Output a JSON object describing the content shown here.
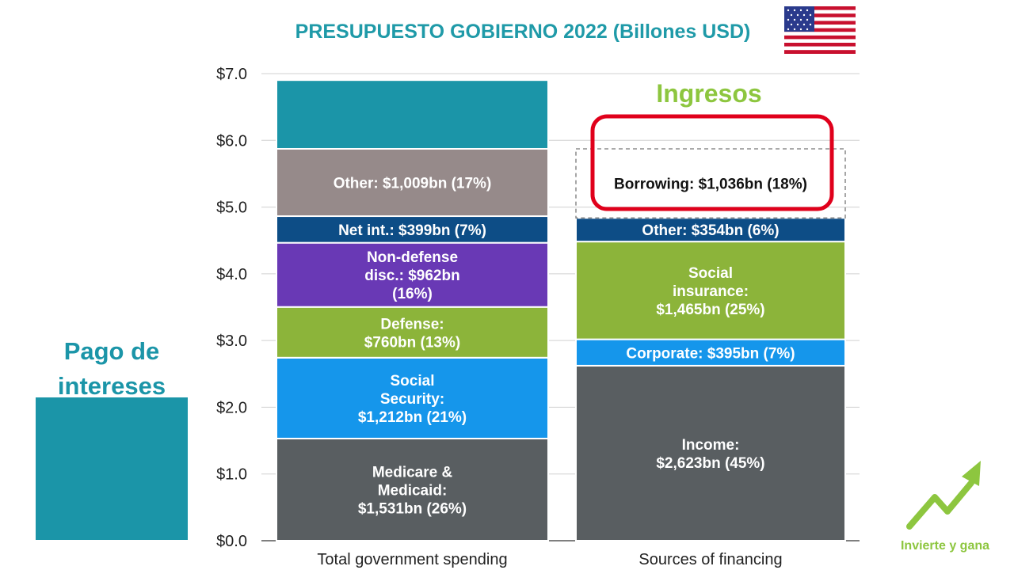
{
  "header": {
    "title": "PRESUPUESTO GOBIERNO 2022 (Billones USD)"
  },
  "annotations": {
    "ingresos": "Ingresos",
    "pago_line1": "Pago de",
    "pago_line2": "intereses",
    "brand": "Invierte y gana"
  },
  "colors": {
    "title": "#1f9aa8",
    "teal": "#1b95a8",
    "green_label": "#8dc63f",
    "highlight_box": "#e0001b"
  },
  "icons": {
    "flag": "us-flag-icon",
    "brand": "rising-arrow-icon"
  },
  "chart_data": {
    "type": "bar",
    "stacked": true,
    "categories": [
      "Total government spending",
      "Sources of financing"
    ],
    "ylim": [
      0,
      7
    ],
    "yticks": [
      "$0.0",
      "$1.0",
      "$2.0",
      "$3.0",
      "$4.0",
      "$5.0",
      "$6.0",
      "$7.0"
    ],
    "grid": true,
    "series": [
      {
        "category": "Total government spending",
        "segments": [
          {
            "value": 1.531,
            "color": "#595e61",
            "label": [
              "Medicare &",
              "Medicaid:",
              "$1,531bn (26%)"
            ]
          },
          {
            "value": 1.212,
            "color": "#1596eb",
            "label": [
              "Social",
              "Security:",
              "$1,212bn (21%)"
            ]
          },
          {
            "value": 0.76,
            "color": "#8cb43a",
            "label": [
              "Defense:",
              "$760bn (13%)"
            ]
          },
          {
            "value": 0.962,
            "color": "#6939b5",
            "label": [
              "Non-defense",
              "disc.: $962bn",
              "(16%)"
            ]
          },
          {
            "value": 0.399,
            "color": "#0d4d86",
            "label": [
              "Net int.: $399bn (7%)"
            ]
          },
          {
            "value": 1.009,
            "color": "#968a8a",
            "label": [
              "Other: $1,009bn (17%)"
            ]
          },
          {
            "value": 1.03,
            "color": "#1b95a8",
            "label": []
          }
        ]
      },
      {
        "category": "Sources of financing",
        "segments": [
          {
            "value": 2.623,
            "color": "#595e61",
            "label": [
              "Income:",
              "$2,623bn (45%)"
            ]
          },
          {
            "value": 0.395,
            "color": "#1596eb",
            "label": [
              "Corporate: $395bn (7%)"
            ]
          },
          {
            "value": 1.465,
            "color": "#8cb43a",
            "label": [
              "Social",
              "insurance:",
              "$1,465bn (25%)"
            ]
          },
          {
            "value": 0.354,
            "color": "#0d4d86",
            "label": [
              "Other: $354bn (6%)"
            ]
          },
          {
            "value": 1.036,
            "color": "none",
            "dashed": true,
            "label": [
              "Borrowing: $1,036bn (18%)"
            ]
          }
        ]
      }
    ]
  }
}
